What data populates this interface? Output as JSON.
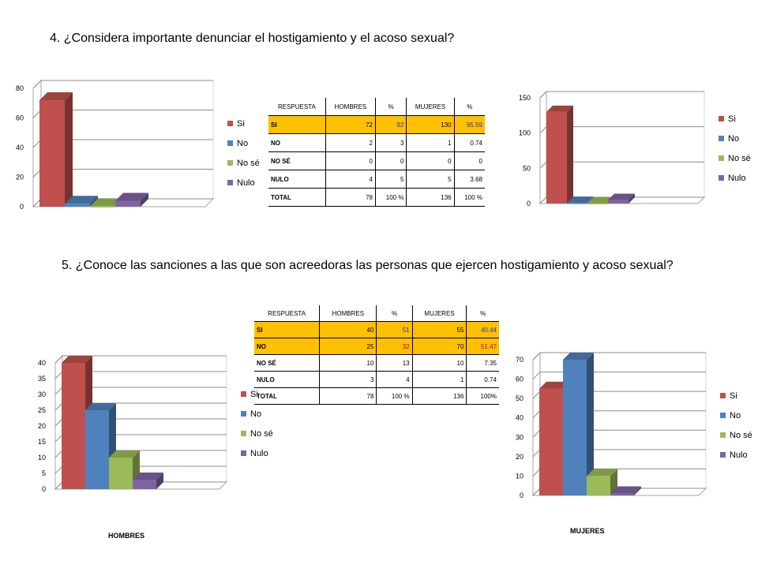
{
  "slide": {
    "q4_title": "4. ¿Considera importante denunciar el hostigamiento y el acoso sexual?",
    "q5_title": "5. ¿Conoce las sanciones a las que son acreedoras las personas que ejercen hostigamiento y acoso sexual?",
    "caption_hombres": "HOMBRES",
    "caption_mujeres": "MUJERES"
  },
  "tables": {
    "q4": {
      "headers": [
        "RESPUESTA",
        "HOMBRES",
        "%",
        "MUJERES",
        "%"
      ],
      "rows": [
        {
          "cells": [
            "SI",
            "72",
            "92",
            "130",
            "95.59"
          ],
          "highlight": true
        },
        {
          "cells": [
            "NO",
            "2",
            "3",
            "1",
            "0.74"
          ],
          "highlight": false
        },
        {
          "cells": [
            "NO SÉ",
            "0",
            "0",
            "0",
            "0"
          ],
          "highlight": false
        },
        {
          "cells": [
            "NULO",
            "4",
            "5",
            "5",
            "3.68"
          ],
          "highlight": false
        },
        {
          "cells": [
            "TOTAL",
            "78",
            "100 %",
            "136",
            "100 %"
          ],
          "highlight": false
        }
      ]
    },
    "q5": {
      "headers": [
        "RESPUESTA",
        "HOMBRES",
        "%",
        "MUJERES",
        "%"
      ],
      "rows": [
        {
          "cells": [
            "SI",
            "40",
            "51",
            "55",
            "40.44"
          ],
          "highlight": true
        },
        {
          "cells": [
            "NO",
            "25",
            "32",
            "70",
            "51.47"
          ],
          "highlight": true
        },
        {
          "cells": [
            "NO SÉ",
            "10",
            "13",
            "10",
            "7.35"
          ],
          "highlight": false
        },
        {
          "cells": [
            "NULO",
            "3",
            "4",
            "1",
            "0.74"
          ],
          "highlight": false
        },
        {
          "cells": [
            "TOTAL",
            "78",
            "100 %",
            "136",
            "100%"
          ],
          "highlight": false
        }
      ]
    }
  },
  "chart_data": [
    {
      "type": "bar",
      "categories": [
        "Si",
        "No",
        "No sé",
        "Nulo"
      ],
      "values": [
        72,
        2,
        0,
        4
      ],
      "ylim": [
        0,
        80
      ],
      "yticks": [
        "0",
        "20",
        "40",
        "60",
        "80"
      ],
      "legend": "right",
      "grid": true
    },
    {
      "type": "bar",
      "categories": [
        "Si",
        "No",
        "No sé",
        "Nulo"
      ],
      "values": [
        130,
        1,
        0,
        5
      ],
      "ylim": [
        0,
        150
      ],
      "yticks": [
        "0",
        "50",
        "100",
        "150"
      ],
      "legend": "right",
      "grid": true
    },
    {
      "type": "bar",
      "categories": [
        "Si",
        "No",
        "No sé",
        "Nulo"
      ],
      "values": [
        40,
        25,
        10,
        3
      ],
      "ylim": [
        0,
        40
      ],
      "yticks": [
        "0",
        "5",
        "10",
        "15",
        "20",
        "25",
        "30",
        "35",
        "40"
      ],
      "legend": "right",
      "grid": true
    },
    {
      "type": "bar",
      "categories": [
        "Si",
        "No",
        "No sé",
        "Nulo"
      ],
      "values": [
        55,
        70,
        10,
        1
      ],
      "ylim": [
        0,
        70
      ],
      "yticks": [
        "0",
        "10",
        "20",
        "30",
        "40",
        "50",
        "60",
        "70"
      ],
      "legend": "right",
      "grid": true
    }
  ],
  "colors": {
    "Si": "#c0504d",
    "No": "#4f81bd",
    "No sé": "#9bbb59",
    "Nulo": "#8064a2"
  }
}
